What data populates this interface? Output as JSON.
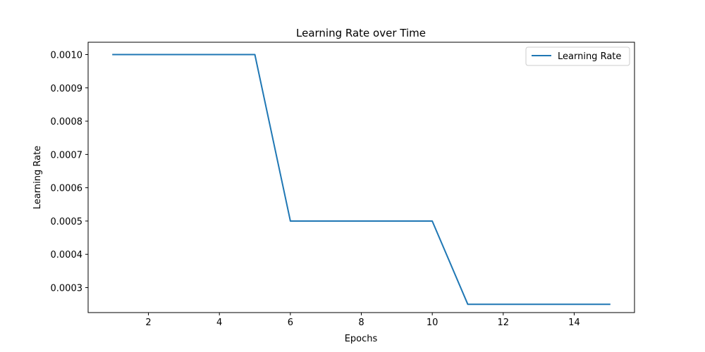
{
  "chart_data": {
    "type": "line",
    "title": "Learning Rate over Time",
    "xlabel": "Epochs",
    "ylabel": "Learning Rate",
    "x": [
      1,
      2,
      3,
      4,
      5,
      6,
      7,
      8,
      9,
      10,
      11,
      12,
      13,
      14,
      15
    ],
    "series": [
      {
        "name": "Learning Rate",
        "color": "#1f77b4",
        "values": [
          0.001,
          0.001,
          0.001,
          0.001,
          0.001,
          0.0005,
          0.0005,
          0.0005,
          0.0005,
          0.0005,
          0.00025,
          0.00025,
          0.00025,
          0.00025,
          0.00025
        ]
      }
    ],
    "xlim": [
      0.3,
      15.7
    ],
    "ylim": [
      0.000225,
      0.001037
    ],
    "xticks": [
      2,
      4,
      6,
      8,
      10,
      12,
      14
    ],
    "xtick_labels": [
      "2",
      "4",
      "6",
      "8",
      "10",
      "12",
      "14"
    ],
    "yticks": [
      0.0003,
      0.0004,
      0.0005,
      0.0006,
      0.0007,
      0.0008,
      0.0009,
      0.001
    ],
    "ytick_labels": [
      "0.0003",
      "0.0004",
      "0.0005",
      "0.0006",
      "0.0007",
      "0.0008",
      "0.0009",
      "0.0010"
    ],
    "grid": false,
    "legend_position": "top-right"
  }
}
